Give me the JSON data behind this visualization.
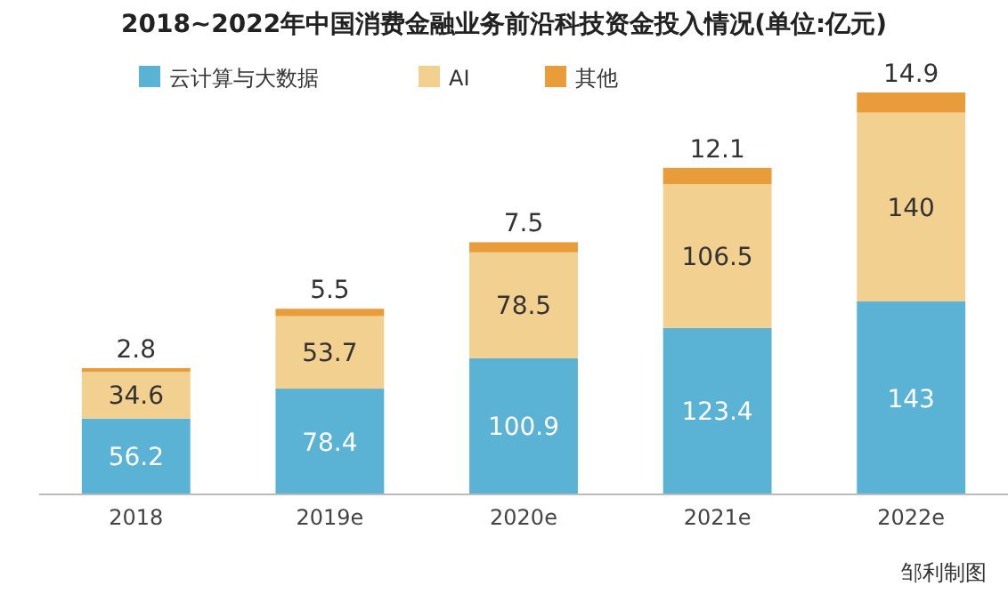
{
  "chart_data": {
    "type": "bar",
    "title": "2018~2022年中国消费金融业务前沿科技资金投入情况(单位:亿元)",
    "categories": [
      "2018",
      "2019e",
      "2020e",
      "2021e",
      "2022e"
    ],
    "stacked": true,
    "data_labels": true,
    "legend": "top left",
    "series": [
      {
        "name": "云计算与大数据",
        "color": "#5ab3d5",
        "values": [
          56.2,
          78.4,
          100.9,
          123.4,
          143
        ]
      },
      {
        "name": "AI",
        "color": "#f2d08f",
        "values": [
          34.6,
          53.7,
          78.5,
          106.5,
          140
        ]
      },
      {
        "name": "其他",
        "color": "#e89d3a",
        "values": [
          2.8,
          5.5,
          7.5,
          12.1,
          14.9
        ]
      }
    ],
    "annotations": [
      "邹利制图"
    ]
  }
}
